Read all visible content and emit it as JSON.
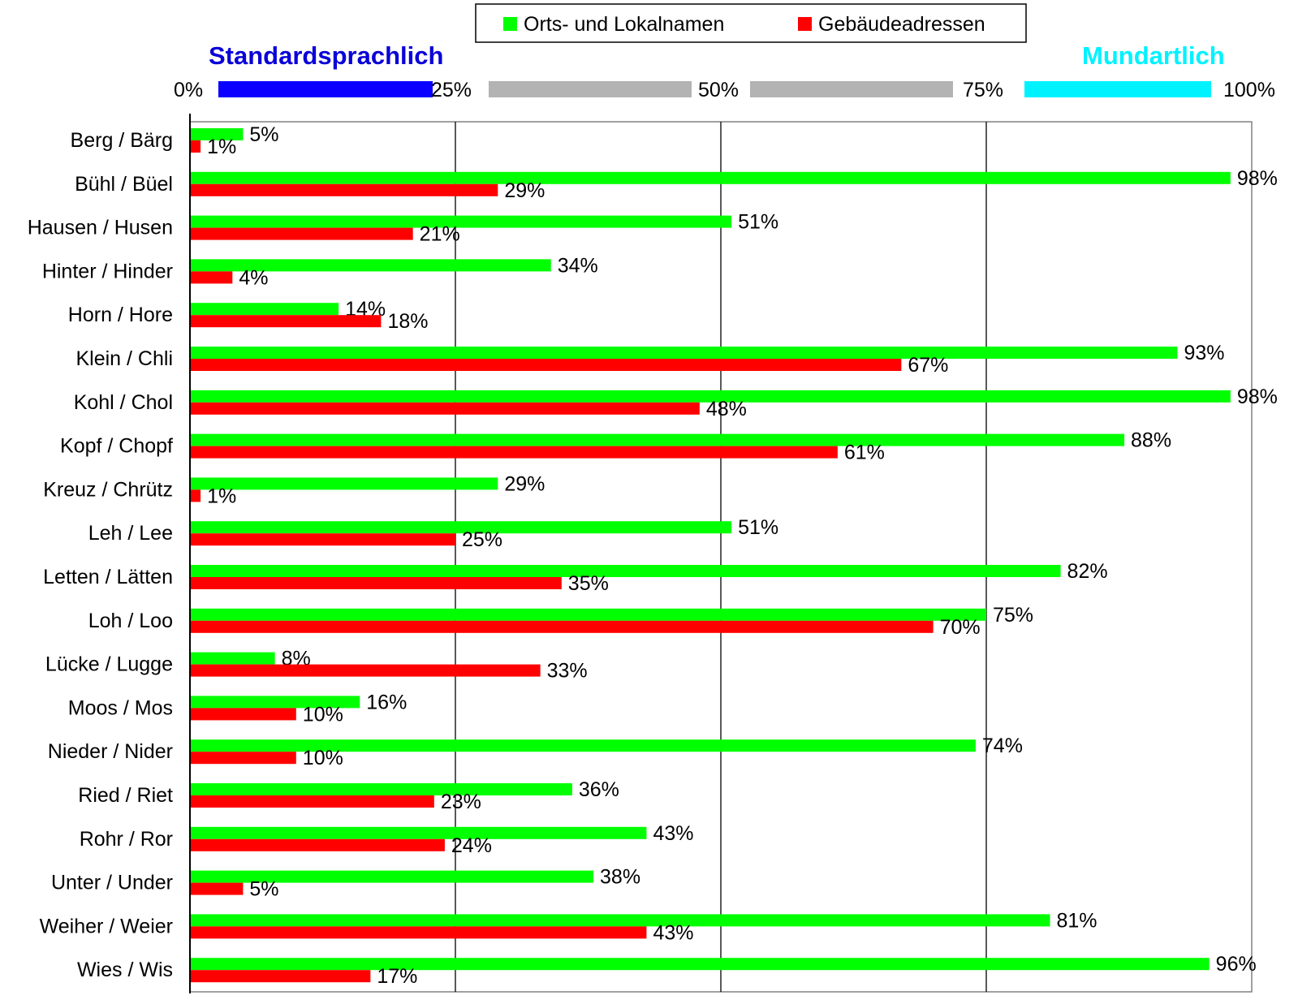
{
  "legend": {
    "series_1": "Orts- und Lokalnamen",
    "series_2": "Gebäudeadressen"
  },
  "scale": {
    "left_pole": "Standardsprachlich",
    "right_pole": "Mundartlich",
    "tick_labels": [
      "0%",
      "25%",
      "50%",
      "75%",
      "100%"
    ],
    "segment_colors": [
      "#0a00ff",
      "#b3b3b3",
      "#b3b3b3",
      "#00f2ff"
    ],
    "left_pole_color": "#0a00d8",
    "right_pole_color": "#00f2ff"
  },
  "chart_data": {
    "type": "bar",
    "orientation": "horizontal",
    "xlim": [
      0,
      100
    ],
    "x_gridlines": [
      25,
      50,
      75
    ],
    "categories": [
      "Berg / Bärg",
      "Bühl / Büel",
      "Hausen / Husen",
      "Hinter / Hinder",
      "Horn / Hore",
      "Klein / Chli",
      "Kohl / Chol",
      "Kopf / Chopf",
      "Kreuz / Chrütz",
      "Leh / Lee",
      "Letten / Lätten",
      "Loh / Loo",
      "Lücke / Lugge",
      "Moos / Mos",
      "Nieder / Nider",
      "Ried / Riet",
      "Rohr / Ror",
      "Unter / Under",
      "Weiher / Weier",
      "Wies / Wis"
    ],
    "series": [
      {
        "name": "Orts- und Lokalnamen",
        "color": "#00ff00",
        "values": [
          5,
          98,
          51,
          34,
          14,
          93,
          98,
          88,
          29,
          51,
          82,
          75,
          8,
          16,
          74,
          36,
          43,
          38,
          81,
          96
        ],
        "labels": [
          "5%",
          "98%",
          "51%",
          "34%",
          "14%",
          "93%",
          "98%",
          "88%",
          "29%",
          "51%",
          "82%",
          "75%",
          "8%",
          "16%",
          "74%",
          "36%",
          "43%",
          "38%",
          "81%",
          "96%"
        ]
      },
      {
        "name": "Gebäudeadressen",
        "color": "#ff0000",
        "values": [
          1,
          29,
          21,
          4,
          18,
          67,
          48,
          61,
          1,
          25,
          35,
          70,
          33,
          10,
          10,
          23,
          24,
          5,
          43,
          17
        ],
        "labels": [
          "1%",
          "29%",
          "21%",
          "4%",
          "18%",
          "67%",
          "48%",
          "61%",
          "1%",
          "25%",
          "35%",
          "70%",
          "33%",
          "10%",
          "10%",
          "23%",
          "24%",
          "5%",
          "43%",
          "17%"
        ]
      }
    ]
  }
}
